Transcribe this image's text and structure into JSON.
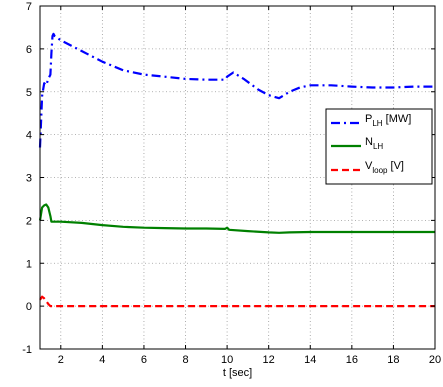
{
  "chart_data": {
    "type": "line",
    "title": "",
    "xlabel": "t [sec]",
    "ylabel": "",
    "xlim": [
      1,
      20
    ],
    "ylim": [
      -1,
      7
    ],
    "xticks": [
      2,
      4,
      6,
      8,
      10,
      12,
      14,
      16,
      18,
      20
    ],
    "yticks": [
      -1,
      0,
      1,
      2,
      3,
      4,
      5,
      6,
      7
    ],
    "grid": true,
    "legend_position": "right",
    "series": [
      {
        "name": "P_LH [MW]",
        "legend_main": "P",
        "legend_sub": "LH",
        "legend_suffix": " [MW]",
        "color": "#0000ff",
        "linestyle": "dashdot",
        "x": [
          1.0,
          1.1,
          1.2,
          1.3,
          1.4,
          1.5,
          1.55,
          1.6,
          1.65,
          1.7,
          2.0,
          3.0,
          4.0,
          5.0,
          6.0,
          7.0,
          8.0,
          9.0,
          9.9,
          10.0,
          10.3,
          10.8,
          11.5,
          12.0,
          12.5,
          13.0,
          13.5,
          14.0,
          15.0,
          16.0,
          17.0,
          18.0,
          19.0,
          20.0
        ],
        "values": [
          3.7,
          4.9,
          5.2,
          5.15,
          5.3,
          5.4,
          5.9,
          6.3,
          6.35,
          6.3,
          6.2,
          5.95,
          5.7,
          5.5,
          5.4,
          5.35,
          5.3,
          5.28,
          5.28,
          5.35,
          5.45,
          5.3,
          5.05,
          4.92,
          4.85,
          5.0,
          5.1,
          5.15,
          5.15,
          5.12,
          5.1,
          5.1,
          5.12,
          5.12
        ]
      },
      {
        "name": "N_LH",
        "legend_main": "N",
        "legend_sub": "LH",
        "legend_suffix": "",
        "color": "#008000",
        "linestyle": "solid",
        "x": [
          1.0,
          1.1,
          1.2,
          1.3,
          1.4,
          1.5,
          1.55,
          2.0,
          3.0,
          4.0,
          5.0,
          6.0,
          7.0,
          8.0,
          9.0,
          9.9,
          10.0,
          10.1,
          11.0,
          12.0,
          12.5,
          13.0,
          14.0,
          15.0,
          16.0,
          17.0,
          18.0,
          19.0,
          20.0
        ],
        "values": [
          2.0,
          2.3,
          2.35,
          2.37,
          2.3,
          2.1,
          1.97,
          1.97,
          1.94,
          1.89,
          1.85,
          1.83,
          1.82,
          1.81,
          1.81,
          1.8,
          1.83,
          1.78,
          1.75,
          1.72,
          1.71,
          1.72,
          1.73,
          1.73,
          1.73,
          1.73,
          1.73,
          1.73,
          1.73
        ]
      },
      {
        "name": "V_loop [V]",
        "legend_main": "V",
        "legend_sub": "loop",
        "legend_suffix": " [V]",
        "color": "#ff0000",
        "linestyle": "dashed",
        "x": [
          1.0,
          1.1,
          1.2,
          1.3,
          1.4,
          1.5,
          1.6,
          2.0,
          4.0,
          6.0,
          8.0,
          10.0,
          12.0,
          14.0,
          16.0,
          18.0,
          20.0
        ],
        "values": [
          0.15,
          0.22,
          0.18,
          0.12,
          0.05,
          0.0,
          0.0,
          0.0,
          0.0,
          0.0,
          0.0,
          0.0,
          0.0,
          0.0,
          0.0,
          0.0,
          0.0
        ]
      }
    ]
  }
}
